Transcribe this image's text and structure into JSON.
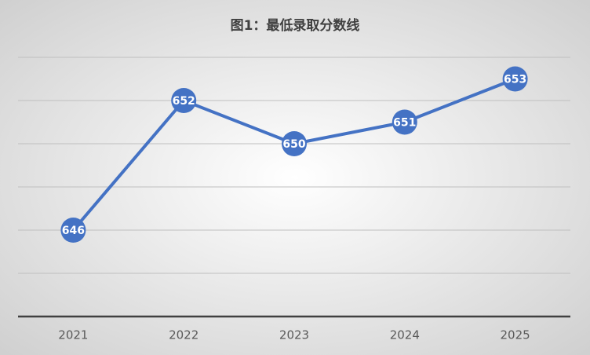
{
  "chart_data": {
    "type": "line",
    "title": "图1：最低录取分数线",
    "categories": [
      "2021",
      "2022",
      "2023",
      "2024",
      "2025"
    ],
    "values": [
      646,
      652,
      650,
      651,
      653
    ],
    "color": "#4472c4",
    "ylim": [
      642,
      654
    ],
    "yticks": [
      642,
      644,
      646,
      648,
      650,
      652,
      654
    ],
    "grid": true
  }
}
